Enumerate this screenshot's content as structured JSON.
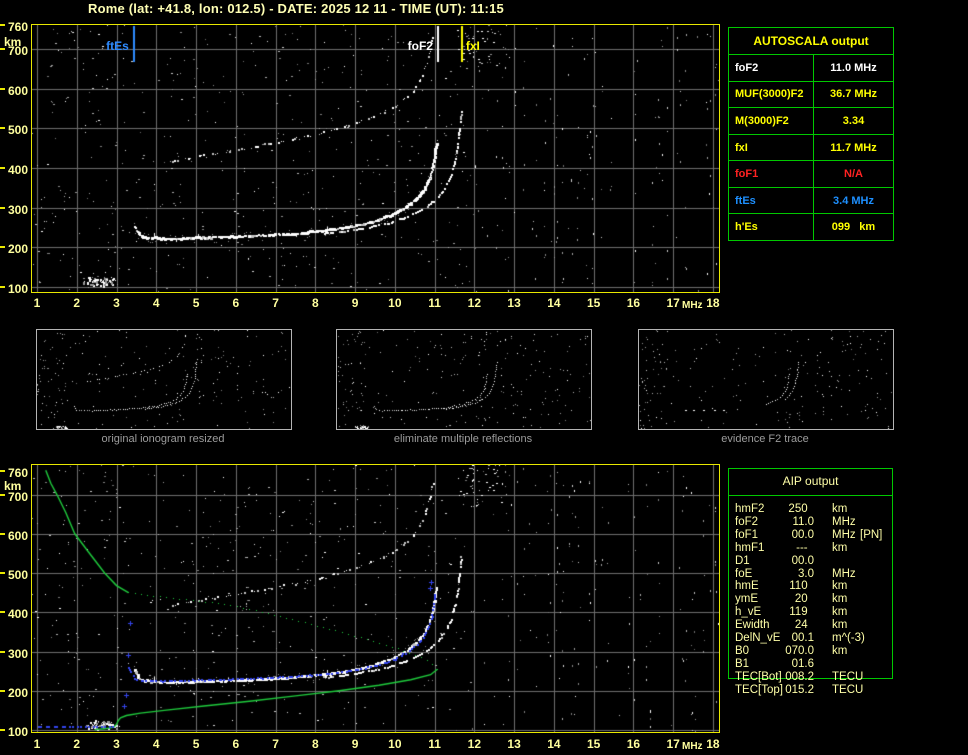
{
  "title": "Rome (lat: +41.8, lon: 012.5) - DATE: 2025 12 11 - TIME (UT): 11:15",
  "colors": {
    "title": "#ffffb4",
    "axis_label": "#ffff9e",
    "plot_border": "#e8e800",
    "grid": "#6f6f6f",
    "table_border": "#00c800",
    "aip_text": "#ffffa8",
    "trace_white": "#ffffff",
    "noise_grey": "#9a9a9a",
    "profile_green": "#1ecb3c",
    "fitted_blue": "#3344ee",
    "marker_blue": "#2e8bff",
    "marker_white": "#ffffff",
    "marker_yellow": "#ffff00"
  },
  "autoscala": {
    "header": "AUTOSCALA output",
    "rows": [
      {
        "label": "foF2",
        "value": "11.0 MHz",
        "color": "#ffffff"
      },
      {
        "label": "MUF(3000)F2",
        "value": "36.7 MHz",
        "color": "#ffff00"
      },
      {
        "label": "M(3000)F2",
        "value": "3.34",
        "color": "#ffff00"
      },
      {
        "label": "fxI",
        "value": "11.7 MHz",
        "color": "#ffff00"
      },
      {
        "label": "foF1",
        "value": "N/A",
        "color": "#ff2222"
      },
      {
        "label": "ftEs",
        "value": "3.4 MHz",
        "color": "#1e90ff"
      },
      {
        "label": "h'Es",
        "value": "099   km",
        "color": "#ffff00"
      }
    ]
  },
  "aip": {
    "header": "AIP output",
    "rows": [
      {
        "label": "hmF2",
        "value": "250  ",
        "unit": "km",
        "note": ""
      },
      {
        "label": "foF2",
        "value": "11.0",
        "unit": "MHz",
        "note": ""
      },
      {
        "label": "foF1",
        "value": "00.0",
        "unit": "MHz",
        "note": "[PN]"
      },
      {
        "label": "hmF1",
        "value": "---  ",
        "unit": "km",
        "note": ""
      },
      {
        "label": "D1",
        "value": "00.0",
        "unit": "",
        "note": ""
      },
      {
        "label": "foE",
        "value": "3.0",
        "unit": "MHz",
        "note": ""
      },
      {
        "label": "hmE",
        "value": "110  ",
        "unit": "km",
        "note": ""
      },
      {
        "label": "ymE",
        "value": "20  ",
        "unit": "km",
        "note": ""
      },
      {
        "label": "h_vE",
        "value": "119  ",
        "unit": "km",
        "note": ""
      },
      {
        "label": "Ewidth",
        "value": "24  ",
        "unit": "km",
        "note": ""
      },
      {
        "label": "DelN_vE",
        "value": "00.1",
        "unit": "m^(-3)",
        "note": ""
      },
      {
        "label": "B0",
        "value": "070.0",
        "unit": "km",
        "note": ""
      },
      {
        "label": "B1",
        "value": "01.6",
        "unit": "",
        "note": ""
      },
      {
        "label": "TEC[Bot]",
        "value": "008.2",
        "unit": "TECU",
        "note": ""
      },
      {
        "label": "TEC[Top]",
        "value": "015.2",
        "unit": "TECU",
        "note": ""
      }
    ]
  },
  "panels": [
    {
      "caption": "original ionogram resized",
      "traces": [
        "main",
        "x_mode",
        "second_hop",
        "es"
      ]
    },
    {
      "caption": "eliminate multiple reflections",
      "traces": [
        "main",
        "x_mode",
        "es",
        "second_hop_steep"
      ]
    },
    {
      "caption": "evidence F2 trace",
      "traces": [
        "main_steep",
        "x_steep",
        "flat_dots"
      ]
    }
  ],
  "chart_data": {
    "type": "scatter",
    "description": "ionogram: virtual height (km) vs sounding frequency (MHz)",
    "x_axis": {
      "unit": "MHz",
      "range": [
        1,
        18
      ],
      "ticks": [
        1,
        2,
        3,
        4,
        5,
        6,
        7,
        8,
        9,
        10,
        11,
        12,
        13,
        14,
        15,
        16,
        17,
        18
      ]
    },
    "y_axis": {
      "unit": "km",
      "range": [
        100,
        760
      ],
      "ticks": [
        760,
        700,
        600,
        500,
        400,
        300,
        200,
        100
      ]
    },
    "grid": true,
    "plots": [
      {
        "id": "top",
        "markers": true,
        "profile": false
      },
      {
        "id": "bottom",
        "markers": false,
        "profile": true
      }
    ],
    "markers": [
      {
        "label": "ftEs",
        "f": 3.41,
        "color": "#2e8bff",
        "side": "left"
      },
      {
        "label": "foF2",
        "f": 11.06,
        "color": "#ffffff",
        "side": "left"
      },
      {
        "label": "fxI",
        "f": 11.66,
        "color": "#ffff00",
        "side": "right"
      }
    ],
    "traces": {
      "main": [
        [
          3.45,
          252
        ],
        [
          3.5,
          238
        ],
        [
          3.6,
          227
        ],
        [
          3.8,
          223
        ],
        [
          4.2,
          221
        ],
        [
          4.8,
          222
        ],
        [
          5.4,
          224
        ],
        [
          6.0,
          226
        ],
        [
          6.6,
          229
        ],
        [
          7.2,
          232
        ],
        [
          7.8,
          237
        ],
        [
          8.4,
          244
        ],
        [
          9.0,
          254
        ],
        [
          9.5,
          266
        ],
        [
          9.9,
          281
        ],
        [
          10.25,
          300
        ],
        [
          10.55,
          324
        ],
        [
          10.75,
          350
        ],
        [
          10.88,
          380
        ],
        [
          10.96,
          415
        ],
        [
          11.0,
          448
        ],
        [
          11.03,
          462
        ]
      ],
      "x_mode": [
        [
          8.2,
          233
        ],
        [
          8.8,
          240
        ],
        [
          9.4,
          250
        ],
        [
          9.9,
          262
        ],
        [
          10.35,
          278
        ],
        [
          10.75,
          299
        ],
        [
          11.05,
          323
        ],
        [
          11.25,
          350
        ],
        [
          11.4,
          382
        ],
        [
          11.5,
          420
        ],
        [
          11.58,
          465
        ],
        [
          11.63,
          510
        ],
        [
          11.66,
          545
        ]
      ],
      "second_hop": [
        [
          4.4,
          416
        ],
        [
          5.0,
          428
        ],
        [
          5.6,
          438
        ],
        [
          6.2,
          448
        ],
        [
          6.8,
          459
        ],
        [
          7.4,
          471
        ],
        [
          8.0,
          484
        ],
        [
          8.6,
          500
        ],
        [
          9.2,
          519
        ],
        [
          9.7,
          540
        ],
        [
          10.1,
          562
        ],
        [
          10.45,
          592
        ],
        [
          10.65,
          625
        ],
        [
          10.8,
          662
        ],
        [
          10.9,
          700
        ],
        [
          10.95,
          742
        ]
      ],
      "flat_dots": [
        [
          4.1,
          229
        ],
        [
          4.6,
          228
        ],
        [
          5.3,
          227
        ],
        [
          6.0,
          226
        ],
        [
          6.6,
          228
        ]
      ],
      "spikes": [
        [
          3.95,
          222,
          14
        ],
        [
          5.05,
          223,
          10
        ],
        [
          8.3,
          243,
          9
        ],
        [
          4.5,
          222,
          -7
        ]
      ],
      "es_blob": {
        "f0": 2.1,
        "f1": 3.1,
        "km0": 103,
        "km1": 127
      },
      "profile_topside": [
        [
          1.22,
          762
        ],
        [
          1.35,
          728
        ],
        [
          1.5,
          700
        ],
        [
          1.72,
          655
        ],
        [
          1.95,
          600
        ],
        [
          2.3,
          553
        ],
        [
          2.7,
          500
        ],
        [
          3.0,
          468
        ],
        [
          3.3,
          450
        ]
      ],
      "profile_mid_dotted": [
        [
          3.3,
          450
        ],
        [
          4.0,
          440
        ],
        [
          5.0,
          429
        ],
        [
          5.7,
          420
        ],
        [
          6.5,
          404
        ],
        [
          7.5,
          379
        ],
        [
          8.5,
          353
        ],
        [
          9.3,
          330
        ],
        [
          10.0,
          309
        ],
        [
          10.5,
          291
        ],
        [
          10.8,
          277
        ],
        [
          11.0,
          263
        ],
        [
          11.07,
          255
        ]
      ],
      "profile_lower": [
        [
          11.07,
          255
        ],
        [
          10.9,
          241
        ],
        [
          10.4,
          228
        ],
        [
          9.6,
          214
        ],
        [
          8.6,
          200
        ],
        [
          7.5,
          187
        ],
        [
          6.4,
          174
        ],
        [
          5.2,
          161
        ],
        [
          4.2,
          150
        ],
        [
          3.6,
          143
        ],
        [
          3.25,
          137
        ],
        [
          3.1,
          131
        ],
        [
          3.05,
          125
        ],
        [
          3.02,
          119
        ],
        [
          2.98,
          112
        ],
        [
          2.92,
          107
        ],
        [
          2.7,
          103
        ],
        [
          2.45,
          101
        ]
      ],
      "fitted_e": [
        [
          1.02,
          107
        ],
        [
          2.88,
          107
        ]
      ],
      "fitted_f": [
        [
          3.3,
          258
        ],
        [
          3.36,
          243
        ],
        [
          3.45,
          231
        ],
        [
          3.6,
          226
        ],
        [
          4.2,
          224
        ],
        [
          5.0,
          226
        ],
        [
          5.8,
          228
        ],
        [
          6.6,
          231
        ],
        [
          7.4,
          235
        ],
        [
          8.2,
          241
        ],
        [
          9.0,
          252
        ],
        [
          9.6,
          266
        ],
        [
          10.0,
          280
        ],
        [
          10.3,
          298
        ],
        [
          10.6,
          322
        ],
        [
          10.8,
          350
        ],
        [
          10.9,
          382
        ],
        [
          10.97,
          420
        ],
        [
          11.0,
          445
        ]
      ],
      "fitted_outliers": [
        [
          3.2,
          162
        ],
        [
          3.24,
          190
        ],
        [
          3.3,
          292
        ],
        [
          3.34,
          372
        ],
        [
          10.88,
          462
        ],
        [
          10.92,
          478
        ]
      ]
    }
  }
}
